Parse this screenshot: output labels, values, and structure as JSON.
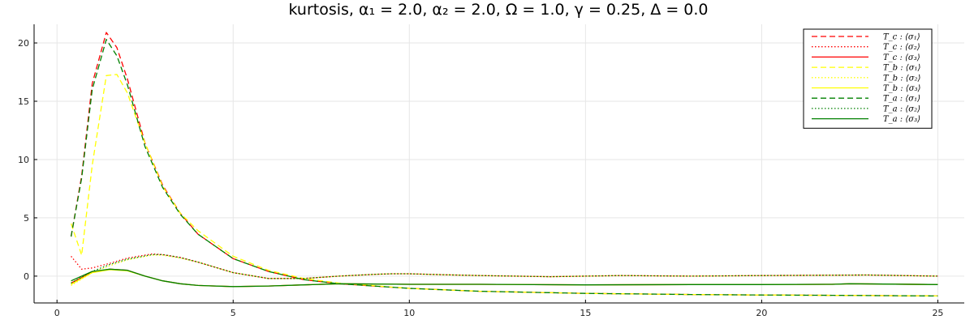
{
  "chart_data": {
    "type": "line",
    "title": "kurtosis, α₁ = 2.0, α₂ = 2.0, Ω = 1.0, γ = 0.25, Δ = 0.0",
    "xlabel": "",
    "ylabel": "",
    "xlim": [
      -0.65,
      25.75
    ],
    "ylim": [
      -2.3,
      21.6
    ],
    "xticks": [
      0,
      5,
      10,
      15,
      20,
      25
    ],
    "yticks": [
      0,
      5,
      10,
      15,
      20
    ],
    "grid": true,
    "legend_position": "top-right",
    "series": [
      {
        "name": "T_c : ⟨σ₁⟩",
        "color": "#ff0000",
        "dash": "dashed",
        "x": [
          0.4,
          0.7,
          1.0,
          1.4,
          1.7,
          2.0,
          2.5,
          3.0,
          3.5,
          4.0,
          5.0,
          6.0,
          7.0,
          8.0,
          10.0,
          12.0,
          15.0,
          18.0,
          20.0,
          22.0,
          25.0
        ],
        "y": [
          3.4,
          8.6,
          16.5,
          20.9,
          19.6,
          16.9,
          11.4,
          7.8,
          5.4,
          3.6,
          1.5,
          0.4,
          -0.3,
          -0.65,
          -1.05,
          -1.3,
          -1.48,
          -1.58,
          -1.62,
          -1.65,
          -1.7
        ]
      },
      {
        "name": "T_c : ⟨σ₂⟩",
        "color": "#ff0000",
        "dash": "dotted",
        "x": [
          0.4,
          0.7,
          1.0,
          1.5,
          2.0,
          2.7,
          3.0,
          3.5,
          4.0,
          5.0,
          6.0,
          7.0,
          8.0,
          9.0,
          9.5,
          10.0,
          11.0,
          12.0,
          14.0,
          16.0,
          18.0,
          20.0,
          23.0,
          25.0
        ],
        "y": [
          1.7,
          0.6,
          0.7,
          1.1,
          1.55,
          1.9,
          1.85,
          1.6,
          1.2,
          0.3,
          -0.2,
          -0.2,
          0.0,
          0.15,
          0.2,
          0.2,
          0.12,
          0.05,
          -0.05,
          0.05,
          0.0,
          0.05,
          0.1,
          0.0
        ]
      },
      {
        "name": "T_c : ⟨σ₃⟩",
        "color": "#ff0000",
        "dash": "solid",
        "x": [
          0.4,
          1.0,
          1.5,
          2.0,
          2.5,
          3.0,
          3.5,
          4.0,
          5.0,
          6.0,
          7.0,
          8.0,
          10.0,
          12.0,
          15.0,
          18.0,
          20.0,
          22.0,
          22.5,
          25.0
        ],
        "y": [
          -0.6,
          0.35,
          0.6,
          0.5,
          0.0,
          -0.4,
          -0.65,
          -0.8,
          -0.9,
          -0.85,
          -0.75,
          -0.65,
          -0.7,
          -0.7,
          -0.75,
          -0.72,
          -0.72,
          -0.7,
          -0.65,
          -0.72
        ]
      },
      {
        "name": "T_b : ⟨σ₁⟩",
        "color": "#ffff00",
        "dash": "dashed",
        "x": [
          0.4,
          0.7,
          1.0,
          1.4,
          1.7,
          2.0,
          2.5,
          3.0,
          3.5,
          4.0,
          5.0,
          6.0,
          7.0,
          8.0,
          10.0,
          12.0,
          15.0,
          18.0,
          20.0,
          22.0,
          25.0
        ],
        "y": [
          4.5,
          1.8,
          9.5,
          17.2,
          17.3,
          15.7,
          11.4,
          7.7,
          5.4,
          3.9,
          1.7,
          0.5,
          -0.2,
          -0.6,
          -1.05,
          -1.3,
          -1.48,
          -1.58,
          -1.62,
          -1.65,
          -1.7
        ]
      },
      {
        "name": "T_b : ⟨σ₂⟩",
        "color": "#ffff00",
        "dash": "dotted",
        "x": [
          0.4,
          1.0,
          1.5,
          2.0,
          2.7,
          3.0,
          3.5,
          4.0,
          5.0,
          6.0,
          7.0,
          8.0,
          9.0,
          9.5,
          10.0,
          11.0,
          12.0,
          14.0,
          16.0,
          18.0,
          20.0,
          23.0,
          25.0
        ],
        "y": [
          -0.8,
          0.3,
          0.9,
          1.4,
          1.8,
          1.8,
          1.55,
          1.2,
          0.3,
          -0.2,
          -0.2,
          0.0,
          0.15,
          0.2,
          0.2,
          0.12,
          0.05,
          -0.05,
          0.05,
          0.0,
          0.05,
          0.1,
          0.0
        ]
      },
      {
        "name": "T_b : ⟨σ₃⟩",
        "color": "#ffff00",
        "dash": "solid",
        "x": [
          0.4,
          1.0,
          1.5,
          2.0,
          2.5,
          3.0,
          3.5,
          4.0,
          5.0,
          6.0,
          7.0,
          8.0,
          10.0,
          12.0,
          15.0,
          18.0,
          20.0,
          22.0,
          22.5,
          25.0
        ],
        "y": [
          -0.7,
          0.3,
          0.55,
          0.45,
          0.0,
          -0.4,
          -0.65,
          -0.8,
          -0.9,
          -0.85,
          -0.75,
          -0.65,
          -0.7,
          -0.7,
          -0.75,
          -0.72,
          -0.72,
          -0.7,
          -0.65,
          -0.72
        ]
      },
      {
        "name": "T_a : ⟨σ₁⟩",
        "color": "#008000",
        "dash": "dashed",
        "x": [
          0.4,
          0.7,
          1.0,
          1.4,
          1.7,
          2.0,
          2.5,
          3.0,
          3.5,
          4.0,
          5.0,
          6.0,
          7.0,
          8.0,
          10.0,
          12.0,
          15.0,
          18.0,
          20.0,
          22.0,
          25.0
        ],
        "y": [
          3.4,
          8.4,
          16.0,
          20.3,
          18.9,
          16.4,
          11.1,
          7.6,
          5.3,
          3.6,
          1.5,
          0.4,
          -0.3,
          -0.65,
          -1.05,
          -1.3,
          -1.48,
          -1.58,
          -1.62,
          -1.65,
          -1.7
        ]
      },
      {
        "name": "T_a : ⟨σ₂⟩",
        "color": "#008000",
        "dash": "dotted",
        "x": [
          0.4,
          1.0,
          1.5,
          2.0,
          2.7,
          3.0,
          3.5,
          4.0,
          5.0,
          6.0,
          7.0,
          8.0,
          9.0,
          9.5,
          10.0,
          11.0,
          12.0,
          14.0,
          16.0,
          18.0,
          20.0,
          23.0,
          25.0
        ],
        "y": [
          -0.6,
          0.4,
          1.0,
          1.45,
          1.85,
          1.85,
          1.6,
          1.2,
          0.3,
          -0.2,
          -0.2,
          0.0,
          0.15,
          0.2,
          0.2,
          0.12,
          0.05,
          -0.05,
          0.05,
          0.0,
          0.05,
          0.1,
          0.0
        ]
      },
      {
        "name": "T_a : ⟨σ₃⟩",
        "color": "#008000",
        "dash": "solid",
        "x": [
          0.4,
          1.0,
          1.5,
          2.0,
          2.5,
          3.0,
          3.5,
          4.0,
          5.0,
          6.0,
          7.0,
          8.0,
          10.0,
          12.0,
          15.0,
          18.0,
          20.0,
          22.0,
          22.5,
          25.0
        ],
        "y": [
          -0.4,
          0.4,
          0.6,
          0.5,
          0.0,
          -0.4,
          -0.65,
          -0.8,
          -0.9,
          -0.85,
          -0.75,
          -0.65,
          -0.7,
          -0.7,
          -0.75,
          -0.72,
          -0.72,
          -0.7,
          -0.65,
          -0.72
        ]
      }
    ]
  }
}
